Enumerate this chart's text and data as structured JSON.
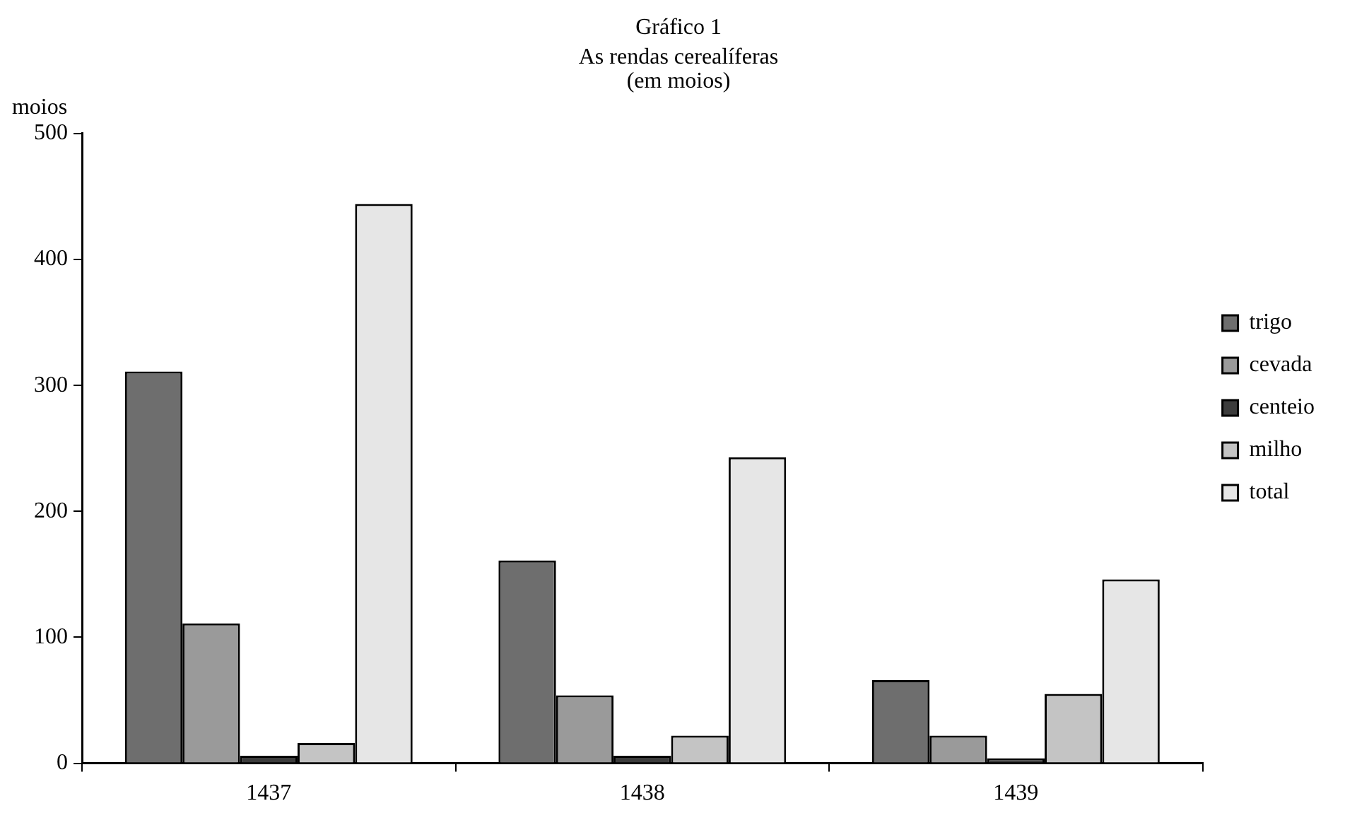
{
  "chart_data": {
    "type": "bar",
    "title": "Gráfico 1",
    "subtitle": "As rendas cerealíferas",
    "annotations": [
      "(em moios)"
    ],
    "ylabel": "moios",
    "categories": [
      "1437",
      "1438",
      "1439"
    ],
    "series": [
      {
        "name": "trigo",
        "color": "#6e6e6e",
        "values": [
          311,
          161,
          66
        ]
      },
      {
        "name": "cevada",
        "color": "#9a9a9a",
        "values": [
          111,
          54,
          22
        ]
      },
      {
        "name": "centeio",
        "color": "#3c3c3c",
        "values": [
          6,
          6,
          4
        ]
      },
      {
        "name": "milho",
        "color": "#c4c4c4",
        "values": [
          16,
          22,
          55
        ]
      },
      {
        "name": "total",
        "color": "#e6e6e6",
        "values": [
          444,
          243,
          146
        ]
      }
    ],
    "ylim": [
      0,
      500
    ],
    "yticks": [
      0,
      100,
      200,
      300,
      400,
      500
    ],
    "grid": false,
    "legend": "right"
  }
}
